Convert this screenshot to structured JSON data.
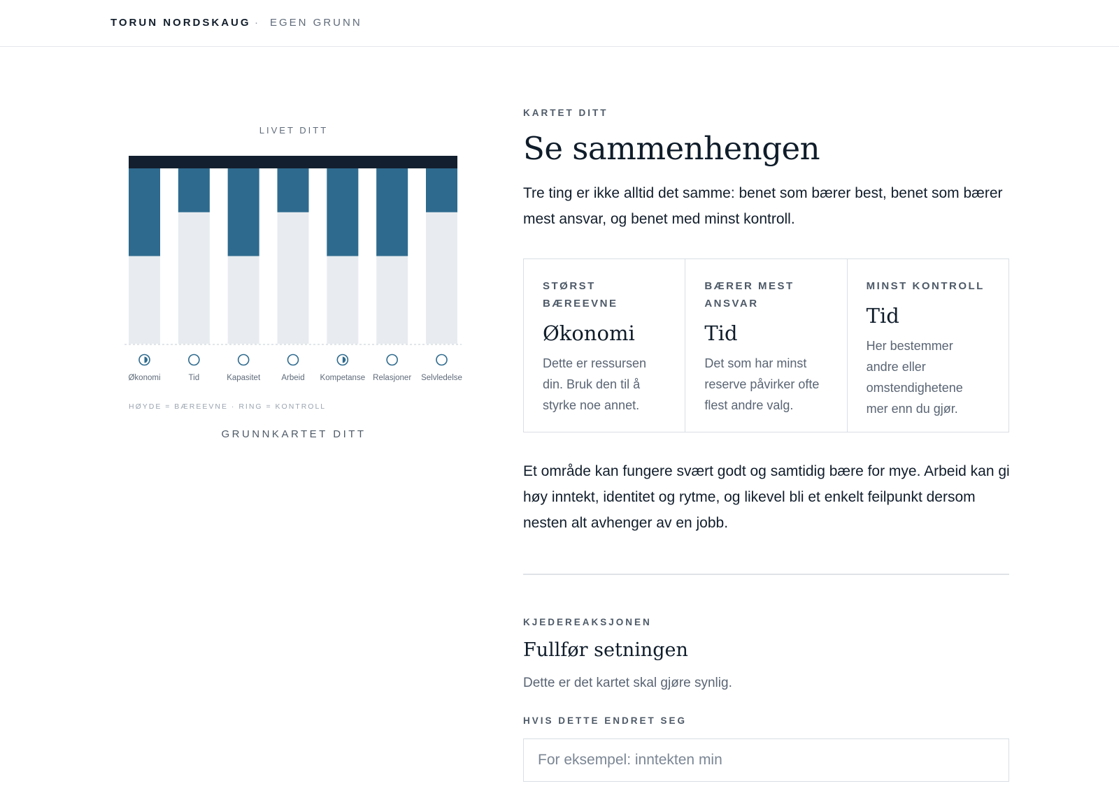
{
  "header": {
    "brand": "TORUN NORDSKAUG",
    "separator": "·",
    "subtitle": "EGEN GRUNN"
  },
  "chart_data": {
    "type": "bar",
    "title": "LIVET DITT",
    "categories": [
      "Økonomi",
      "Tid",
      "Kapasitet",
      "Arbeid",
      "Kompetanse",
      "Relasjoner",
      "Selvledelse"
    ],
    "series": [
      {
        "values": [
          2,
          1,
          2,
          1,
          2,
          2,
          1
        ]
      }
    ],
    "ylim": [
      0,
      4
    ],
    "control": [
      "half",
      "empty",
      "empty",
      "empty",
      "half",
      "empty",
      "empty"
    ],
    "legend": "HØYDE = BÆREEVNE · RING = KONTROLL",
    "colors": {
      "bar": "#2e6a8e",
      "track": "#e8ecf0",
      "cap": "#131f2e",
      "ring": "#2e6a8e"
    }
  },
  "chart_caption": "GRUNNKARTET DITT",
  "main": {
    "eyebrow": "KARTET DITT",
    "title": "Se sammenhengen",
    "lead": "Tre ting er ikke alltid det samme: benet som bærer best, benet som bærer mest ansvar, og benet med minst kontroll.",
    "cards": [
      {
        "label": "STØRST BÆREEVNE",
        "title": "Økonomi",
        "text": "Dette er ressursen din. Bruk den til å styrke noe annet."
      },
      {
        "label": "BÆRER MEST ANSVAR",
        "title": "Tid",
        "text": "Det som har minst reserve påvirker ofte flest andre valg."
      },
      {
        "label": "MINST KONTROLL",
        "title": "Tid",
        "text": "Her bestemmer andre eller omstendighetene mer enn du gjør."
      }
    ],
    "paragraph": "Et område kan fungere svært godt og samtidig bære for mye. Arbeid kan gi høy inntekt, identitet og rytme, og likevel bli et enkelt feilpunkt dersom nesten alt avhenger av en jobb."
  },
  "chain": {
    "eyebrow": "KJEDEREAKSJONEN",
    "title": "Fullfør setningen",
    "subtitle": "Dette er det kartet skal gjøre synlig.",
    "field_label": "HVIS DETTE ENDRET SEG",
    "input_placeholder": "For eksempel: inntekten min",
    "input_value": ""
  }
}
